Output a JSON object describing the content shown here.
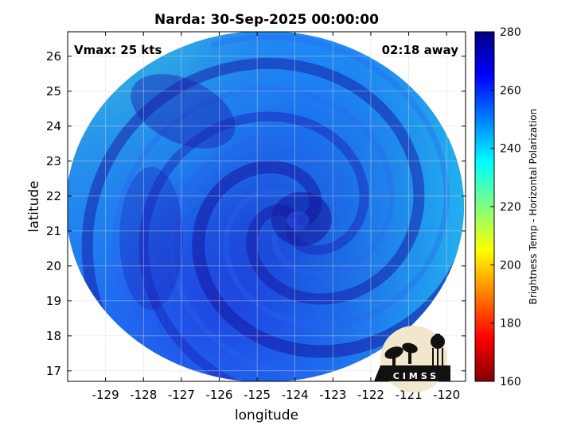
{
  "title": "Narda: 30-Sep-2025 00:00:00",
  "annotations": {
    "vmax": "Vmax: 25 kts",
    "away": "02:18 away"
  },
  "axes": {
    "xlabel": "longitude",
    "ylabel": "latitude",
    "xlim": [
      -130.0,
      -119.5
    ],
    "ylim": [
      16.7,
      26.7
    ],
    "xticks": [
      "-129",
      "-128",
      "-127",
      "-126",
      "-125",
      "-124",
      "-123",
      "-122",
      "-121",
      "-120"
    ],
    "yticks": [
      "17",
      "18",
      "19",
      "20",
      "21",
      "22",
      "23",
      "24",
      "25",
      "26"
    ],
    "grid": true
  },
  "colorbar": {
    "label": "Brightness Temp - Horizontal Polarization",
    "ticks": [
      "280",
      "260",
      "240",
      "220",
      "200",
      "180",
      "160"
    ],
    "range": [
      160,
      280
    ],
    "colormap": "jet",
    "placement": "right"
  },
  "storm": {
    "center_lon": -124.0,
    "center_lat": 21.3,
    "swath_center_lon": -124.7,
    "swath_center_lat": 21.6
  },
  "logo": {
    "text": "CIMSS",
    "placement": "bottom-right"
  },
  "colors": {
    "swath_base": "#2846e6",
    "swath_dark": "#1a1fb3",
    "swath_warm": "#1d8ef7",
    "swath_edge": "#2ec3e8",
    "frame": "#000000",
    "grid": "#d9d9d9"
  }
}
